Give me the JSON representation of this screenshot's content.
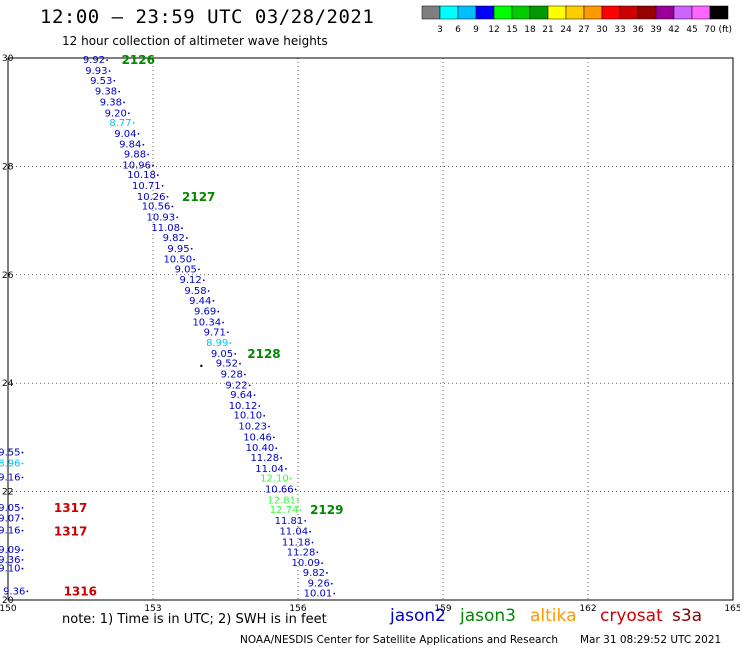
{
  "header": {
    "title": "12:00 – 23:59 UTC 03/28/2021",
    "subtitle": "12 hour collection of altimeter wave heights"
  },
  "colorbar": {
    "colors": [
      "#7f7f7f",
      "#00ffff",
      "#00bfff",
      "#0000ff",
      "#00ff00",
      "#00cc00",
      "#009900",
      "#ffff00",
      "#ffcc00",
      "#ff9900",
      "#ff0000",
      "#cc0000",
      "#990000",
      "#990099",
      "#cc66ff",
      "#ff66ff",
      "#000000"
    ],
    "labels": [
      "3",
      "6",
      "9",
      "12",
      "15",
      "18",
      "21",
      "24",
      "27",
      "30",
      "33",
      "36",
      "39",
      "42",
      "45",
      "70"
    ],
    "unit": "(ft)"
  },
  "footer": {
    "note": "note:  1) Time is in UTC;  2) SWH is in feet",
    "credit": "NOAA/NESDIS Center for Satellite Applications and Research",
    "timestamp": "Mar 31 08:29:52 UTC 2021"
  },
  "satellites": [
    {
      "name": "jason2",
      "color": "#0000cc"
    },
    {
      "name": "jason3",
      "color": "#008800"
    },
    {
      "name": "altika",
      "color": "#ff9900"
    },
    {
      "name": "cryosat",
      "color": "#cc0000"
    },
    {
      "name": "s3a",
      "color": "#880000"
    }
  ],
  "chart_data": {
    "type": "scatter",
    "xlim": [
      150,
      165
    ],
    "ylim": [
      20,
      30
    ],
    "xticks": [
      "150",
      "153",
      "156",
      "159",
      "162",
      "165"
    ],
    "yticks": [
      "20",
      "22",
      "24",
      "26",
      "28",
      "30"
    ],
    "grid": true,
    "track_main": [
      {
        "x": 152.05,
        "y": 29.96,
        "v": "9.92",
        "c": "#0000cc"
      },
      {
        "x": 152.1,
        "y": 29.76,
        "v": "9.93",
        "c": "#0000cc"
      },
      {
        "x": 152.2,
        "y": 29.58,
        "v": "9.53",
        "c": "#0000cc"
      },
      {
        "x": 152.3,
        "y": 29.38,
        "v": "9.38",
        "c": "#0000cc"
      },
      {
        "x": 152.4,
        "y": 29.18,
        "v": "9.38",
        "c": "#0000cc"
      },
      {
        "x": 152.5,
        "y": 28.98,
        "v": "9.20",
        "c": "#0000cc"
      },
      {
        "x": 152.6,
        "y": 28.8,
        "v": "8.77",
        "c": "#00bfff"
      },
      {
        "x": 152.7,
        "y": 28.6,
        "v": "9.04",
        "c": "#0000cc"
      },
      {
        "x": 152.8,
        "y": 28.4,
        "v": "9.84",
        "c": "#0000cc"
      },
      {
        "x": 152.9,
        "y": 28.22,
        "v": "9.88",
        "c": "#0000cc"
      },
      {
        "x": 153.0,
        "y": 28.02,
        "v": "10.96",
        "c": "#0000cc"
      },
      {
        "x": 153.1,
        "y": 27.84,
        "v": "10.18",
        "c": "#0000cc"
      },
      {
        "x": 153.2,
        "y": 27.64,
        "v": "10.71",
        "c": "#0000cc"
      },
      {
        "x": 153.3,
        "y": 27.44,
        "v": "10.26",
        "c": "#0000cc"
      },
      {
        "x": 153.4,
        "y": 27.26,
        "v": "10.56",
        "c": "#0000cc"
      },
      {
        "x": 153.5,
        "y": 27.06,
        "v": "10.93",
        "c": "#0000cc"
      },
      {
        "x": 153.6,
        "y": 26.86,
        "v": "11.08",
        "c": "#0000cc"
      },
      {
        "x": 153.7,
        "y": 26.68,
        "v": "9.82",
        "c": "#0000cc"
      },
      {
        "x": 153.8,
        "y": 26.48,
        "v": "9.95",
        "c": "#0000cc"
      },
      {
        "x": 153.85,
        "y": 26.28,
        "v": "10.50",
        "c": "#0000cc"
      },
      {
        "x": 153.95,
        "y": 26.1,
        "v": "9.05",
        "c": "#0000cc"
      },
      {
        "x": 154.05,
        "y": 25.9,
        "v": "9.12",
        "c": "#0000cc"
      },
      {
        "x": 154.15,
        "y": 25.7,
        "v": "9.58",
        "c": "#0000cc"
      },
      {
        "x": 154.25,
        "y": 25.52,
        "v": "9.44",
        "c": "#0000cc"
      },
      {
        "x": 154.35,
        "y": 25.32,
        "v": "9.69",
        "c": "#0000cc"
      },
      {
        "x": 154.45,
        "y": 25.12,
        "v": "10.34",
        "c": "#0000cc"
      },
      {
        "x": 154.55,
        "y": 24.94,
        "v": "9.71",
        "c": "#0000cc"
      },
      {
        "x": 154.6,
        "y": 24.74,
        "v": "8.99",
        "c": "#00bfff"
      },
      {
        "x": 154.7,
        "y": 24.54,
        "v": "9.05",
        "c": "#0000cc"
      },
      {
        "x": 154.8,
        "y": 24.36,
        "v": "9.52",
        "c": "#0000cc"
      },
      {
        "x": 154.9,
        "y": 24.16,
        "v": "9.28",
        "c": "#0000cc"
      },
      {
        "x": 155.0,
        "y": 23.96,
        "v": "9.22",
        "c": "#0000cc"
      },
      {
        "x": 155.1,
        "y": 23.78,
        "v": "9.64",
        "c": "#0000cc"
      },
      {
        "x": 155.2,
        "y": 23.58,
        "v": "10.12",
        "c": "#0000cc"
      },
      {
        "x": 155.3,
        "y": 23.4,
        "v": "10.10",
        "c": "#0000cc"
      },
      {
        "x": 155.4,
        "y": 23.2,
        "v": "10.23",
        "c": "#0000cc"
      },
      {
        "x": 155.5,
        "y": 23.0,
        "v": "10.46",
        "c": "#0000cc"
      },
      {
        "x": 155.55,
        "y": 22.8,
        "v": "10.40",
        "c": "#0000cc"
      },
      {
        "x": 155.65,
        "y": 22.62,
        "v": "11.28",
        "c": "#0000cc"
      },
      {
        "x": 155.75,
        "y": 22.42,
        "v": "11.04",
        "c": "#0000cc"
      },
      {
        "x": 155.85,
        "y": 22.24,
        "v": "12.10",
        "c": "#33ff33"
      },
      {
        "x": 155.95,
        "y": 22.04,
        "v": "10.66",
        "c": "#0000cc"
      },
      {
        "x": 156.0,
        "y": 21.84,
        "v": "12.81",
        "c": "#33ff33"
      },
      {
        "x": 156.05,
        "y": 21.66,
        "v": "12.74",
        "c": "#33ff33"
      },
      {
        "x": 156.15,
        "y": 21.46,
        "v": "11.81",
        "c": "#0000cc"
      },
      {
        "x": 156.25,
        "y": 21.26,
        "v": "11.04",
        "c": "#0000cc"
      },
      {
        "x": 156.3,
        "y": 21.06,
        "v": "11.18",
        "c": "#0000cc"
      },
      {
        "x": 156.4,
        "y": 20.88,
        "v": "11.28",
        "c": "#0000cc"
      },
      {
        "x": 156.5,
        "y": 20.68,
        "v": "10.09",
        "c": "#0000cc"
      },
      {
        "x": 156.6,
        "y": 20.5,
        "v": "9.82",
        "c": "#0000cc"
      },
      {
        "x": 156.7,
        "y": 20.3,
        "v": "9.26",
        "c": "#0000cc"
      },
      {
        "x": 156.75,
        "y": 20.12,
        "v": "10.01",
        "c": "#0000cc"
      }
    ],
    "track_west": [
      {
        "x": 150.3,
        "y": 22.72,
        "v": "9.55",
        "c": "#0000cc"
      },
      {
        "x": 150.3,
        "y": 22.52,
        "v": "8.96",
        "c": "#00bfff"
      },
      {
        "x": 150.3,
        "y": 22.26,
        "v": "9.16",
        "c": "#0000cc"
      },
      {
        "x": 150.3,
        "y": 21.7,
        "v": "9.05",
        "c": "#0000cc"
      },
      {
        "x": 150.3,
        "y": 21.5,
        "v": "9.07",
        "c": "#0000cc"
      },
      {
        "x": 150.3,
        "y": 21.28,
        "v": "9.16",
        "c": "#0000cc"
      },
      {
        "x": 150.3,
        "y": 20.92,
        "v": "9.09",
        "c": "#0000cc"
      },
      {
        "x": 150.3,
        "y": 20.74,
        "v": "9.36",
        "c": "#0000cc"
      },
      {
        "x": 150.3,
        "y": 20.58,
        "v": "9.10",
        "c": "#0000cc"
      },
      {
        "x": 150.4,
        "y": 20.16,
        "v": "9.36",
        "c": "#0000cc"
      }
    ],
    "pass_labels": [
      {
        "x": 152.35,
        "y": 29.96,
        "t": "2126",
        "c": "#008800"
      },
      {
        "x": 153.6,
        "y": 27.44,
        "t": "2127",
        "c": "#008800"
      },
      {
        "x": 154.95,
        "y": 24.54,
        "t": "2128",
        "c": "#008800"
      },
      {
        "x": 156.25,
        "y": 21.66,
        "t": "2129",
        "c": "#008800"
      },
      {
        "x": 150.95,
        "y": 21.7,
        "t": "1317",
        "c": "#cc0000"
      },
      {
        "x": 150.95,
        "y": 21.26,
        "t": "1317",
        "c": "#cc0000"
      },
      {
        "x": 151.15,
        "y": 20.16,
        "t": "1316",
        "c": "#cc0000"
      }
    ],
    "markers": [
      {
        "x": 154.0,
        "y": 24.32
      }
    ]
  }
}
